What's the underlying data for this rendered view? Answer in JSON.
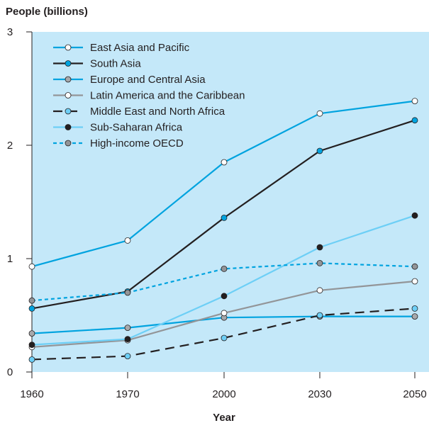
{
  "chart_data": {
    "type": "line",
    "title": "",
    "ylabel": "People (billions)",
    "xlabel": "Year",
    "x": [
      "1960",
      "1970",
      "2000",
      "2030",
      "2050"
    ],
    "ylim": [
      0,
      3
    ],
    "yticks": [
      "0",
      "1",
      "2",
      "3"
    ],
    "grid": false,
    "legend_position": "top-left",
    "background_color": "#c4e8f9",
    "series": [
      {
        "name": "East Asia and Pacific",
        "values": [
          0.93,
          1.16,
          1.85,
          2.28,
          2.39
        ],
        "color": "#00a3df",
        "dash": "solid",
        "marker_fill": "#ffffff"
      },
      {
        "name": "South Asia",
        "values": [
          0.56,
          0.71,
          1.36,
          1.95,
          2.22
        ],
        "color": "#231f20",
        "dash": "solid",
        "marker_fill": "#00a3df"
      },
      {
        "name": "Europe and Central Asia",
        "values": [
          0.34,
          0.39,
          0.48,
          0.49,
          0.49
        ],
        "color": "#00a3df",
        "dash": "solid",
        "marker_fill": "#a7a9ac"
      },
      {
        "name": "Latin America and the Caribbean",
        "values": [
          0.22,
          0.28,
          0.52,
          0.72,
          0.8
        ],
        "color": "#939598",
        "dash": "solid",
        "marker_fill": "#ffffff"
      },
      {
        "name": "Middle East and North Africa",
        "values": [
          0.11,
          0.14,
          0.3,
          0.5,
          0.56
        ],
        "color": "#231f20",
        "dash": "longdash",
        "marker_fill": "#6dcff6"
      },
      {
        "name": "Sub-Saharan Africa",
        "values": [
          0.24,
          0.29,
          0.67,
          1.1,
          1.38
        ],
        "color": "#6dcff6",
        "dash": "solid",
        "marker_fill": "#231f20"
      },
      {
        "name": "High-income OECD",
        "values": [
          0.63,
          0.7,
          0.91,
          0.96,
          0.93
        ],
        "color": "#00a3df",
        "dash": "shortdash",
        "marker_fill": "#939598"
      }
    ]
  }
}
